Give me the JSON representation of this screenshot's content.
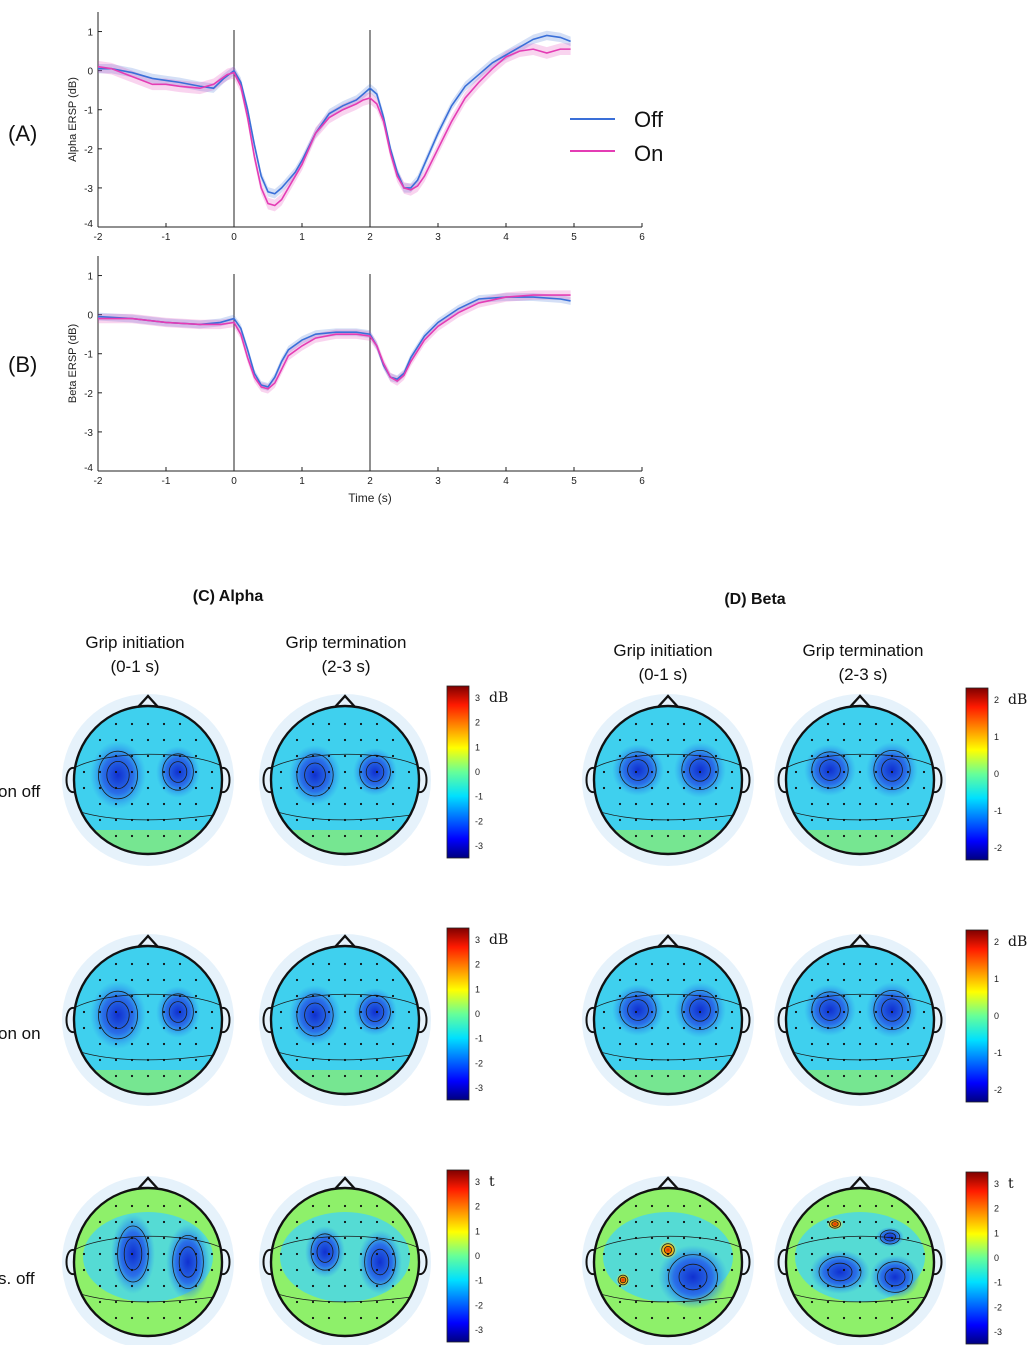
{
  "chart_data": [
    {
      "type": "line",
      "panel_label": "(A)",
      "xlabel": "",
      "ylabel": "Alpha ERSP (dB)",
      "xlim": [
        -2,
        6
      ],
      "ylim": [
        -4,
        1.5
      ],
      "xticks": [
        -2,
        -1,
        0,
        1,
        2,
        3,
        4,
        5,
        6
      ],
      "yticks": [
        -4,
        -3,
        -2,
        -1,
        0,
        1
      ],
      "vlines": [
        0,
        2
      ],
      "legend": {
        "placement": "right",
        "entries": [
          "Off",
          "On"
        ]
      },
      "series": [
        {
          "name": "Off",
          "color": "#3a6fd8",
          "x": [
            -2,
            -1.8,
            -1.5,
            -1.2,
            -1,
            -0.8,
            -0.5,
            -0.3,
            -0.15,
            0,
            0.1,
            0.2,
            0.3,
            0.4,
            0.5,
            0.6,
            0.7,
            0.8,
            0.9,
            1,
            1.2,
            1.4,
            1.6,
            1.8,
            1.9,
            2,
            2.1,
            2.2,
            2.3,
            2.4,
            2.5,
            2.6,
            2.7,
            2.8,
            3,
            3.2,
            3.4,
            3.6,
            3.8,
            4,
            4.2,
            4.4,
            4.6,
            4.8,
            4.95
          ],
          "y": [
            0.05,
            0.05,
            -0.05,
            -0.2,
            -0.25,
            -0.3,
            -0.4,
            -0.45,
            -0.2,
            0,
            -0.3,
            -1,
            -1.9,
            -2.7,
            -3.1,
            -3.15,
            -3,
            -2.8,
            -2.6,
            -2.3,
            -1.6,
            -1.1,
            -0.9,
            -0.75,
            -0.6,
            -0.45,
            -0.6,
            -1.2,
            -2,
            -2.6,
            -3,
            -3,
            -2.8,
            -2.4,
            -1.6,
            -0.9,
            -0.4,
            -0.1,
            0.2,
            0.4,
            0.6,
            0.8,
            0.9,
            0.85,
            0.75
          ],
          "band": 0.12
        },
        {
          "name": "On",
          "color": "#e43cb4",
          "x": [
            -2,
            -1.8,
            -1.5,
            -1.2,
            -1,
            -0.8,
            -0.5,
            -0.3,
            -0.1,
            0,
            0.1,
            0.2,
            0.3,
            0.4,
            0.5,
            0.6,
            0.7,
            0.8,
            0.9,
            1,
            1.2,
            1.4,
            1.6,
            1.8,
            1.9,
            2,
            2.1,
            2.2,
            2.3,
            2.4,
            2.5,
            2.6,
            2.7,
            2.8,
            3,
            3.2,
            3.4,
            3.6,
            3.8,
            4,
            4.2,
            4.4,
            4.6,
            4.8,
            4.95
          ],
          "y": [
            0.1,
            0.05,
            -0.15,
            -0.35,
            -0.35,
            -0.4,
            -0.45,
            -0.35,
            -0.1,
            -0.05,
            -0.4,
            -1.2,
            -2.2,
            -3,
            -3.4,
            -3.45,
            -3.3,
            -3,
            -2.7,
            -2.4,
            -1.6,
            -1.2,
            -1,
            -0.85,
            -0.75,
            -0.7,
            -0.85,
            -1.3,
            -2.1,
            -2.7,
            -3,
            -3.05,
            -2.95,
            -2.7,
            -2,
            -1.3,
            -0.7,
            -0.3,
            0.05,
            0.35,
            0.5,
            0.55,
            0.45,
            0.55,
            0.55
          ],
          "band": 0.15
        }
      ]
    },
    {
      "type": "line",
      "panel_label": "(B)",
      "xlabel": "Time (s)",
      "ylabel": "Beta ERSP (dB)",
      "xlim": [
        -2,
        6
      ],
      "ylim": [
        -4,
        1.5
      ],
      "xticks": [
        -2,
        -1,
        0,
        1,
        2,
        3,
        4,
        5,
        6
      ],
      "yticks": [
        -4,
        -3,
        -2,
        -1,
        0,
        1
      ],
      "vlines": [
        0,
        2
      ],
      "series": [
        {
          "name": "Off",
          "color": "#3a6fd8",
          "x": [
            -2,
            -1.5,
            -1,
            -0.5,
            -0.2,
            0,
            0.1,
            0.2,
            0.3,
            0.4,
            0.5,
            0.6,
            0.7,
            0.8,
            1,
            1.2,
            1.5,
            1.8,
            2,
            2.1,
            2.2,
            2.3,
            2.4,
            2.5,
            2.6,
            2.8,
            3,
            3.3,
            3.6,
            4,
            4.4,
            4.8,
            4.95
          ],
          "y": [
            -0.05,
            -0.1,
            -0.2,
            -0.25,
            -0.2,
            -0.1,
            -0.35,
            -0.9,
            -1.5,
            -1.8,
            -1.85,
            -1.6,
            -1.2,
            -0.9,
            -0.65,
            -0.5,
            -0.45,
            -0.45,
            -0.5,
            -0.8,
            -1.3,
            -1.6,
            -1.65,
            -1.5,
            -1.1,
            -0.55,
            -0.2,
            0.15,
            0.4,
            0.45,
            0.45,
            0.4,
            0.35
          ],
          "band": 0.1
        },
        {
          "name": "On",
          "color": "#e43cb4",
          "x": [
            -2,
            -1.5,
            -1,
            -0.5,
            -0.2,
            0,
            0.1,
            0.2,
            0.3,
            0.4,
            0.5,
            0.6,
            0.7,
            0.8,
            1,
            1.2,
            1.5,
            1.8,
            2,
            2.1,
            2.2,
            2.3,
            2.4,
            2.5,
            2.6,
            2.8,
            3,
            3.3,
            3.6,
            4,
            4.4,
            4.8,
            4.95
          ],
          "y": [
            -0.1,
            -0.1,
            -0.2,
            -0.25,
            -0.25,
            -0.2,
            -0.5,
            -1.1,
            -1.6,
            -1.85,
            -1.9,
            -1.75,
            -1.4,
            -1.05,
            -0.8,
            -0.6,
            -0.5,
            -0.5,
            -0.55,
            -0.8,
            -1.25,
            -1.6,
            -1.7,
            -1.55,
            -1.2,
            -0.65,
            -0.3,
            0.05,
            0.3,
            0.45,
            0.5,
            0.5,
            0.5
          ],
          "band": 0.12
        }
      ]
    },
    {
      "type": "heatmap",
      "panel_label": "(C) Alpha",
      "columns": [
        {
          "title": "Grip initiation",
          "subtitle": "(0-1 s)"
        },
        {
          "title": "Grip termination",
          "subtitle": "(2-3 s)"
        }
      ],
      "rows": [
        "on off",
        "on on",
        "s. off"
      ],
      "colorbars": [
        {
          "unit": "dB",
          "ticks": [
            "3",
            "2",
            "1",
            "0",
            "-1",
            "-2",
            "-3"
          ]
        },
        {
          "unit": "dB",
          "ticks": [
            "3",
            "2",
            "1",
            "0",
            "-1",
            "-2",
            "-3"
          ]
        },
        {
          "unit": "t",
          "ticks": [
            "3",
            "2",
            "1",
            "0",
            "-1",
            "-2",
            "-3"
          ]
        }
      ]
    },
    {
      "type": "heatmap",
      "panel_label": "(D) Beta",
      "columns": [
        {
          "title": "Grip initiation",
          "subtitle": "(0-1 s)"
        },
        {
          "title": "Grip termination",
          "subtitle": "(2-3 s)"
        }
      ],
      "rows": [
        "on off",
        "on on",
        "s. off"
      ],
      "colorbars": [
        {
          "unit": "dB",
          "ticks": [
            "2",
            "1",
            "0",
            "-1",
            "-2"
          ]
        },
        {
          "unit": "dB",
          "ticks": [
            "2",
            "1",
            "0",
            "-1",
            "-2"
          ]
        },
        {
          "unit": "t",
          "ticks": [
            "3",
            "2",
            "1",
            "0",
            "-1",
            "-2",
            "-3"
          ]
        }
      ]
    }
  ]
}
